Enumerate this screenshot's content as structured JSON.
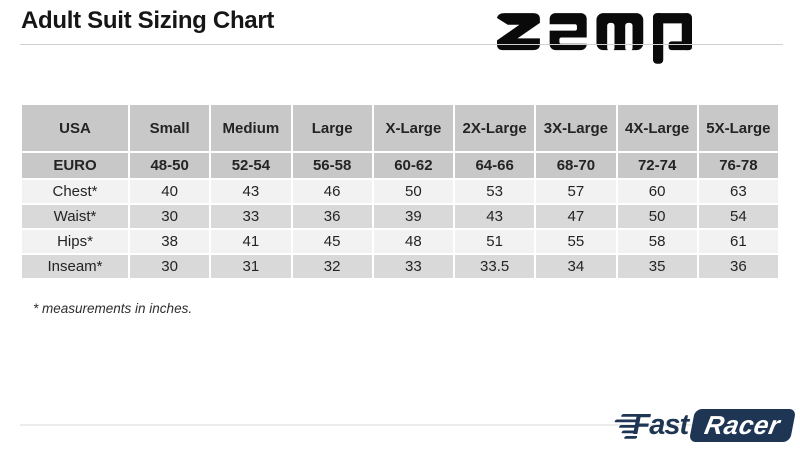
{
  "header": {
    "title": "Adult Suit Sizing Chart"
  },
  "brand": {
    "zamp": {
      "name": "zamp"
    },
    "fastracer": {
      "fast": "Fast",
      "racer": "Racer"
    }
  },
  "table": {
    "columns": [
      "USA",
      "Small",
      "Medium",
      "Large",
      "X-Large",
      "2X-Large",
      "3X-Large",
      "4X-Large",
      "5X-Large"
    ],
    "rows": [
      {
        "label": "EURO",
        "values": [
          "48-50",
          "52-54",
          "56-58",
          "60-62",
          "64-66",
          "68-70",
          "72-74",
          "76-78"
        ]
      },
      {
        "label": "Chest*",
        "values": [
          "40",
          "43",
          "46",
          "50",
          "53",
          "57",
          "60",
          "63"
        ]
      },
      {
        "label": "Waist*",
        "values": [
          "30",
          "33",
          "36",
          "39",
          "43",
          "47",
          "50",
          "54"
        ]
      },
      {
        "label": "Hips*",
        "values": [
          "38",
          "41",
          "45",
          "48",
          "51",
          "55",
          "58",
          "61"
        ]
      },
      {
        "label": "Inseam*",
        "values": [
          "30",
          "31",
          "32",
          "33",
          "33.5",
          "34",
          "35",
          "36"
        ]
      }
    ]
  },
  "footnote": "* measurements in inches.",
  "colors": {
    "table_header_gray": "#c8c8c8",
    "row_light": "#f2f2f2",
    "row_mid": "#d9d9d9",
    "brand_navy": "#1e3553",
    "logo_black": "#0a0a0a"
  }
}
